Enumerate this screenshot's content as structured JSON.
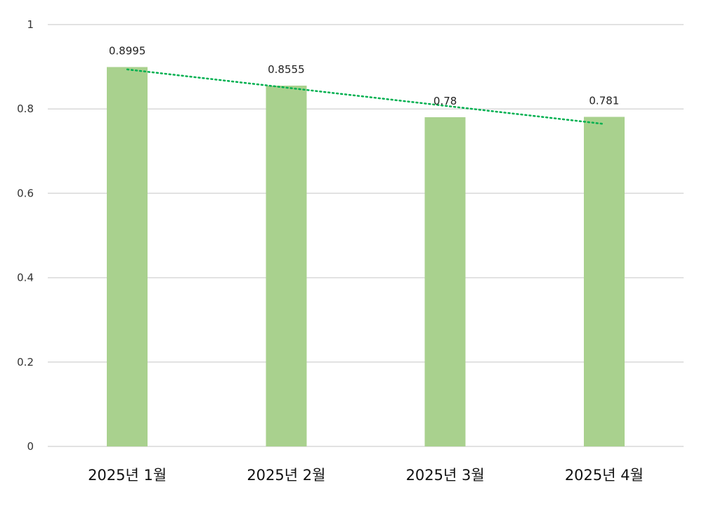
{
  "chart_data": {
    "type": "bar",
    "title": "",
    "xlabel": "",
    "ylabel": "",
    "categories": [
      "2025년 1월",
      "2025년 2월",
      "2025년 3월",
      "2025년 4월"
    ],
    "values": [
      0.8995,
      0.8555,
      0.78,
      0.781
    ],
    "data_labels": [
      "0.8995",
      "0.8555",
      "0.78",
      "0.781"
    ],
    "ylim": [
      0,
      1
    ],
    "yticks": [
      0,
      0.2,
      0.4,
      0.6,
      0.8,
      1
    ],
    "ytick_labels": [
      "0",
      "0.2",
      "0.4",
      "0.6",
      "0.8",
      "1"
    ],
    "grid": true,
    "legend": "none",
    "trendline": {
      "type": "linear",
      "style": "dotted"
    },
    "colors": {
      "bar": "#a9d18e",
      "trendline": "#00b050",
      "gridline": "#d9d9d9"
    }
  }
}
